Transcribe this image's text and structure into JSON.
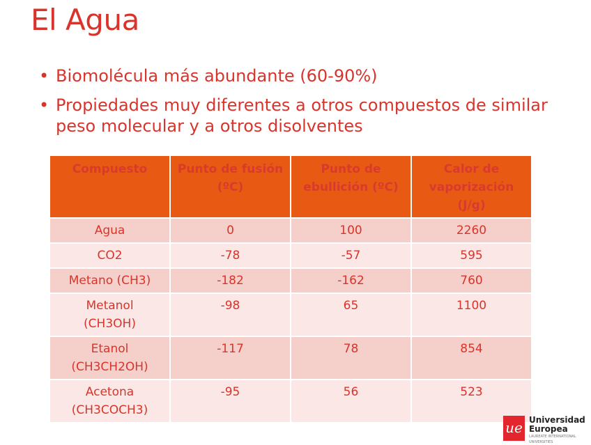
{
  "title": "El Agua",
  "bullets": [
    "Biomolécula más abundante (60-90%)",
    "Propiedades muy diferentes a otros compuestos de similar peso molecular y a otros disolventes"
  ],
  "table": {
    "headers": [
      "Compuesto",
      "Punto de fusión (ºC)",
      "Punto de ebullición (ºC)",
      "Calor de vaporización (J/g)"
    ],
    "rows": [
      {
        "compound": "Agua",
        "fusion": "0",
        "boiling": "100",
        "heat": "2260"
      },
      {
        "compound": "CO2",
        "fusion": "-78",
        "boiling": "-57",
        "heat": "595"
      },
      {
        "compound": "Metano (CH3)",
        "fusion": "-182",
        "boiling": "-162",
        "heat": "760"
      },
      {
        "compound": "Metanol (CH3OH)",
        "fusion": "-98",
        "boiling": "65",
        "heat": "1100"
      },
      {
        "compound": "Etanol (CH3CH2OH)",
        "fusion": "-117",
        "boiling": "78",
        "heat": "854"
      },
      {
        "compound": "Acetona (CH3COCH3)",
        "fusion": "-95",
        "boiling": "56",
        "heat": "523"
      }
    ]
  },
  "logo": {
    "mark": "ue",
    "name1": "Universidad",
    "name2": "Europea",
    "tagline": "LAUREATE INTERNATIONAL UNIVERSITIES"
  }
}
